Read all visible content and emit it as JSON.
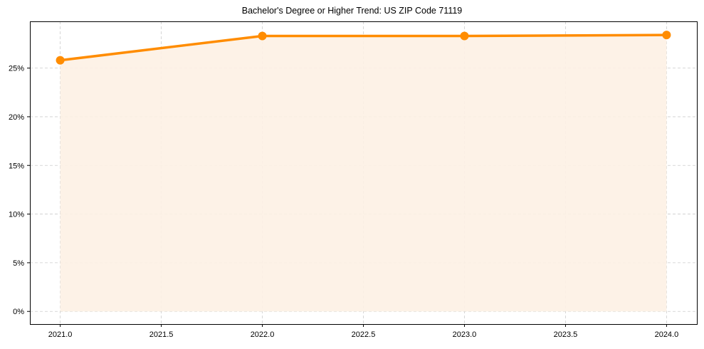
{
  "chart_data": {
    "type": "line",
    "title": "Bachelor's Degree or Higher Trend: US ZIP Code 71119",
    "xlabel": "",
    "ylabel": "",
    "x": [
      2021,
      2022,
      2023,
      2024
    ],
    "series": [
      {
        "name": "Bachelor's Degree or Higher",
        "values": [
          25.8,
          28.3,
          28.3,
          28.4
        ],
        "color": "#FF8C00",
        "fill": "#FDF1E4",
        "marker": "circle"
      }
    ],
    "x_ticks": [
      2021.0,
      2021.5,
      2022.0,
      2022.5,
      2023.0,
      2023.5,
      2024.0
    ],
    "x_tick_labels": [
      "2021.0",
      "2021.5",
      "2022.0",
      "2022.5",
      "2023.0",
      "2023.5",
      "2024.0"
    ],
    "y_ticks": [
      0,
      5,
      10,
      15,
      20,
      25
    ],
    "y_tick_labels": [
      "0%",
      "5%",
      "10%",
      "15%",
      "20%",
      "25%"
    ],
    "xlim": [
      2020.85,
      2024.15
    ],
    "ylim": [
      -1.3,
      29.8
    ],
    "grid": true,
    "grid_style": "dashed",
    "legend": null
  }
}
